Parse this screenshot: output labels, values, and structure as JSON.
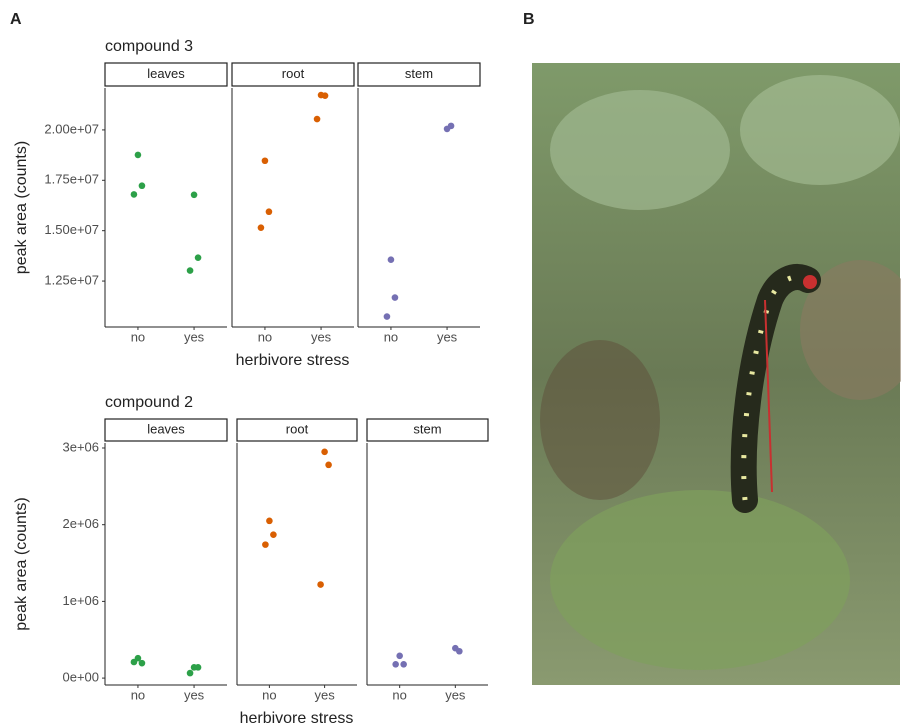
{
  "panel_labels": [
    "A",
    "B"
  ],
  "chart_data": [
    {
      "type": "scatter",
      "title": "compound 3",
      "x_label": "herbivore stress",
      "y_label": "peak area (counts)",
      "categories": [
        "no",
        "yes"
      ],
      "ylim": [
        10220000,
        22080000
      ],
      "yticks": [
        {
          "value": 12500000,
          "label": "1.25e+07"
        },
        {
          "value": 15000000,
          "label": "1.50e+07"
        },
        {
          "value": 17500000,
          "label": "1.75e+07"
        },
        {
          "value": 20000000,
          "label": "2.00e+07"
        }
      ],
      "series": [
        {
          "name": "leaves",
          "color": "#2ca048",
          "x": [
            "no",
            "no",
            "no",
            "yes",
            "yes",
            "yes"
          ],
          "values": [
            18760000,
            17230000,
            16800000,
            16780000,
            13660000,
            13020000
          ]
        },
        {
          "name": "root",
          "color": "#d95f02",
          "x": [
            "no",
            "no",
            "no",
            "yes",
            "yes",
            "yes"
          ],
          "values": [
            18470000,
            15940000,
            15150000,
            21730000,
            21700000,
            20540000
          ]
        },
        {
          "name": "stem",
          "color": "#7570b3",
          "x": [
            "no",
            "no",
            "no",
            "yes",
            "yes"
          ],
          "values": [
            13560000,
            11680000,
            10740000,
            20050000,
            20200000
          ]
        }
      ]
    },
    {
      "type": "scatter",
      "title": "compound 2",
      "x_label": "herbivore stress",
      "y_label": "peak area (counts)",
      "categories": [
        "no",
        "yes"
      ],
      "ylim": [
        -90000,
        3065000
      ],
      "yticks": [
        {
          "value": 0,
          "label": "0e+00"
        },
        {
          "value": 1000000,
          "label": "1e+06"
        },
        {
          "value": 2000000,
          "label": "2e+06"
        },
        {
          "value": 3000000,
          "label": "3e+06"
        }
      ],
      "series": [
        {
          "name": "leaves",
          "color": "#2ca048",
          "x": [
            "no",
            "no",
            "no",
            "yes",
            "yes",
            "yes"
          ],
          "values": [
            260000,
            195000,
            210000,
            140000,
            140000,
            65000
          ]
        },
        {
          "name": "root",
          "color": "#d95f02",
          "x": [
            "no",
            "no",
            "no",
            "yes",
            "yes",
            "yes"
          ],
          "values": [
            2050000,
            1870000,
            1740000,
            2950000,
            2780000,
            1220000
          ]
        },
        {
          "name": "stem",
          "color": "#7570b3",
          "x": [
            "no",
            "no",
            "no",
            "yes",
            "yes"
          ],
          "values": [
            290000,
            180000,
            180000,
            390000,
            350000
          ]
        }
      ]
    }
  ]
}
